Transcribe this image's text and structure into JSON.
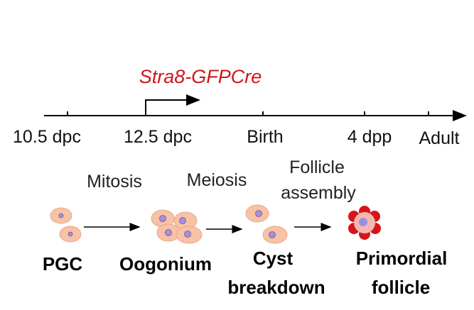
{
  "title": "Stra8-GFPCre",
  "timeline": {
    "labels": [
      "10.5 dpc",
      "12.5 dpc",
      "Birth",
      "4 dpp",
      "Adult"
    ]
  },
  "processes": [
    [
      "Mitosis"
    ],
    [
      "Meiosis"
    ],
    [
      "Follicle",
      "assembly"
    ]
  ],
  "stages": [
    [
      "PGC"
    ],
    [
      "Oogonium"
    ],
    [
      "Cyst",
      "breakdown"
    ],
    [
      "Primordial",
      "follicle"
    ]
  ]
}
